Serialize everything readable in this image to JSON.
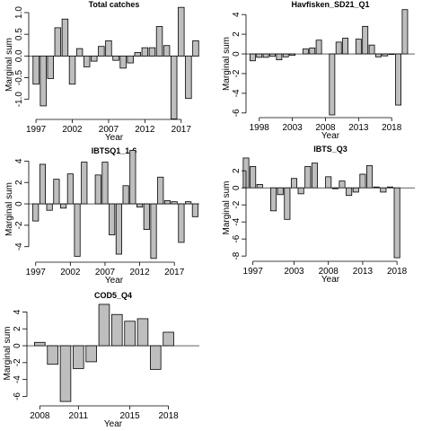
{
  "chart_data": [
    {
      "type": "bar",
      "title": "Total catches",
      "xlabel": "Year",
      "ylabel": "Marginal sum",
      "ylim": [
        -1.4,
        1.0
      ],
      "yticks": [
        -1.0,
        -0.5,
        0.0,
        0.5,
        1.0
      ],
      "ytick_labels": [
        "-1.0",
        "-0.5",
        "0.0",
        "0.5",
        "1.0"
      ],
      "xlim": [
        1996,
        2019.5
      ],
      "xticks": [
        1997,
        2002,
        2007,
        2012,
        2017
      ],
      "x": [
        1997,
        1998,
        1999,
        2000,
        2001,
        2002,
        2003,
        2004,
        2005,
        2006,
        2007,
        2008,
        2009,
        2010,
        2011,
        2012,
        2013,
        2014,
        2015,
        2016,
        2017,
        2018,
        2019
      ],
      "values": [
        -0.65,
        -1.15,
        -0.52,
        0.65,
        0.85,
        -0.65,
        0.17,
        -0.25,
        -0.12,
        0.22,
        0.35,
        -0.1,
        -0.28,
        -0.16,
        0.08,
        0.19,
        0.19,
        0.68,
        0.24,
        -1.45,
        1.12,
        -0.98,
        0.35
      ]
    },
    {
      "type": "bar",
      "title": "Havfisken_SD21_Q1",
      "xlabel": "Year",
      "ylabel": "Marginal sum",
      "ylim": [
        -6.2,
        4.2
      ],
      "yticks": [
        -6,
        -4,
        -2,
        0,
        2,
        4
      ],
      "ytick_labels": [
        "-6",
        "-4",
        "-2",
        "0",
        "2",
        "4"
      ],
      "xlim": [
        1996,
        2021.5
      ],
      "xticks": [
        1998,
        2003,
        2008,
        2013,
        2018
      ],
      "x": [
        1997,
        1998,
        1999,
        2000,
        2001,
        2002,
        2003,
        2004,
        2005,
        2006,
        2007,
        2008,
        2009,
        2010,
        2011,
        2012,
        2013,
        2014,
        2015,
        2016,
        2017,
        2018,
        2019,
        2020,
        2021
      ],
      "values": [
        -0.7,
        -0.35,
        -0.35,
        -0.25,
        -0.6,
        -0.3,
        -0.15,
        0,
        0.5,
        0.6,
        1.4,
        0,
        -6.2,
        1.2,
        1.6,
        0,
        1.5,
        2.8,
        0.9,
        -0.3,
        -0.2,
        -0.05,
        -5.2,
        4.5,
        0
      ]
    },
    {
      "type": "bar",
      "title": "IBTSQ1_1-6",
      "xlabel": "Year",
      "ylabel": "Marginal sum",
      "ylim": [
        -5.2,
        4.2
      ],
      "yticks": [
        -4,
        -2,
        0,
        2,
        4
      ],
      "ytick_labels": [
        "-4",
        "-2",
        "0",
        "2",
        "4"
      ],
      "xlim": [
        1996,
        2020.6
      ],
      "xticks": [
        1997,
        2002,
        2007,
        2012,
        2017
      ],
      "x": [
        1997,
        1998,
        1999,
        2000,
        2001,
        2002,
        2003,
        2004,
        2005,
        2006,
        2007,
        2008,
        2009,
        2010,
        2011,
        2012,
        2013,
        2014,
        2015,
        2016,
        2017,
        2018,
        2019,
        2020
      ],
      "values": [
        -1.6,
        3.7,
        -0.6,
        2.3,
        -0.4,
        2.8,
        -4.9,
        3.9,
        0,
        2.7,
        3.9,
        -2.9,
        -4.7,
        1.7,
        5.0,
        -0.3,
        -2.4,
        -5.1,
        2.5,
        0.3,
        0.2,
        -3.6,
        0.2,
        -1.2
      ]
    },
    {
      "type": "bar",
      "title": "IBTS_Q3",
      "xlabel": "Year",
      "ylabel": "Marginal sum",
      "ylim": [
        -8.3,
        3.6
      ],
      "yticks": [
        -8,
        -6,
        -4,
        -2,
        0,
        2
      ],
      "ytick_labels": [
        "-8",
        "-6",
        "-4",
        "-2",
        "0",
        "2"
      ],
      "xlim": [
        1996,
        2020.6
      ],
      "xticks": [
        1997,
        2003,
        2008,
        2013,
        2018
      ],
      "x": [
        1996,
        1997,
        1998,
        1999,
        2000,
        2001,
        2002,
        2003,
        2004,
        2005,
        2006,
        2007,
        2008,
        2009,
        2010,
        2011,
        2012,
        2013,
        2014,
        2015,
        2016,
        2017,
        2018,
        2019,
        2020
      ],
      "values": [
        3.5,
        2.5,
        0.4,
        0,
        -2.7,
        -0.8,
        -3.7,
        1.1,
        -0.7,
        2.5,
        2.9,
        0,
        1.3,
        -0.1,
        0.8,
        -0.9,
        -0.5,
        1.6,
        2.6,
        0.1,
        -0.5,
        0.1,
        -8.2,
        0,
        0
      ]
    },
    {
      "type": "bar",
      "title": "COD5_Q4",
      "xlabel": "Year",
      "ylabel": "Marginal sum",
      "ylim": [
        -6.8,
        5.0
      ],
      "yticks": [
        -6,
        -4,
        -2,
        0,
        2,
        4
      ],
      "ytick_labels": [
        "-6",
        "-4",
        "-2",
        "0",
        "2",
        "4"
      ],
      "xlim": [
        2007,
        2020.4
      ],
      "xticks": [
        2008,
        2011,
        2015,
        2018
      ],
      "x": [
        2008,
        2009,
        2010,
        2011,
        2012,
        2013,
        2014,
        2015,
        2016,
        2017,
        2018,
        2019
      ],
      "values": [
        0.4,
        -2.2,
        -6.6,
        -2.7,
        -1.9,
        4.9,
        3.7,
        2.9,
        3.2,
        -2.8,
        1.6,
        0
      ]
    }
  ]
}
